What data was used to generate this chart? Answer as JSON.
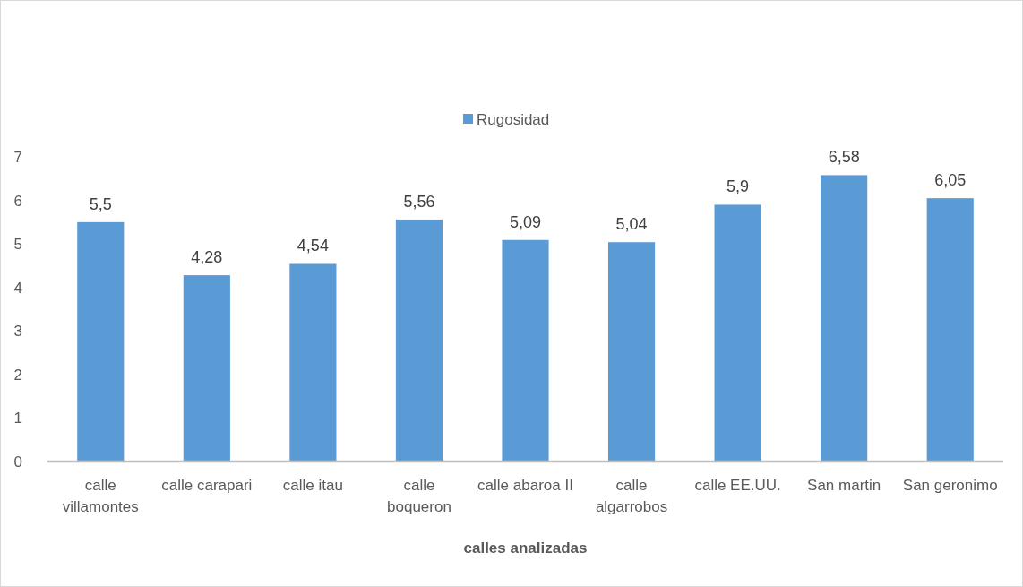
{
  "chart_data": {
    "type": "bar",
    "xlabel": "calles analizadas",
    "categories": [
      "calle villamontes",
      "calle carapari",
      "calle itau",
      "calle boqueron",
      "calle abaroa II",
      "calle algarrobos",
      "calle EE.UU.",
      "San martin",
      "San geronimo"
    ],
    "series": [
      {
        "name": "Rugosidad",
        "color": "#5b9bd5",
        "values": [
          5.5,
          4.28,
          4.54,
          5.56,
          5.09,
          5.04,
          5.9,
          6.58,
          6.05
        ],
        "value_labels": [
          "5,5",
          "4,28",
          "4,54",
          "5,56",
          "5,09",
          "5,04",
          "5,9",
          "6,58",
          "6,05"
        ]
      }
    ],
    "ylim": [
      0,
      7
    ],
    "yticks": [
      0,
      1,
      2,
      3,
      4,
      5,
      6,
      7
    ],
    "grid": false,
    "legend": "top"
  }
}
